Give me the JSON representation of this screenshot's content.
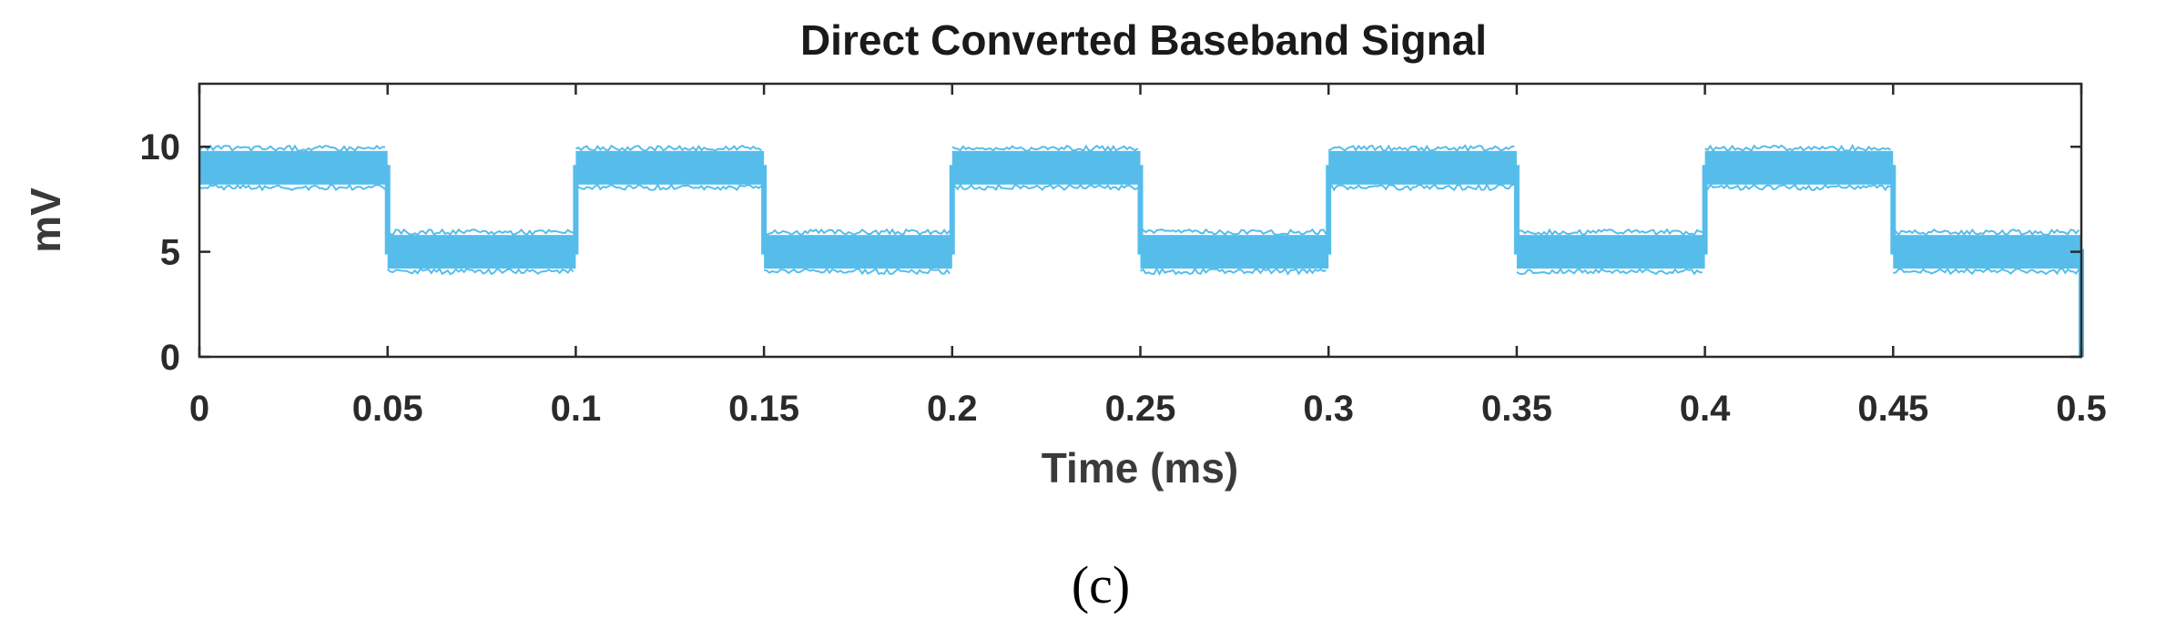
{
  "chart_data": {
    "type": "line",
    "title": "Direct Converted Baseband Signal",
    "xlabel": "Time (ms)",
    "ylabel": "mV",
    "xlim": [
      0,
      0.5
    ],
    "ylim": [
      0,
      13
    ],
    "x_ticks": [
      0,
      0.05,
      0.1,
      0.15,
      0.2,
      0.25,
      0.3,
      0.35,
      0.4,
      0.45,
      0.5
    ],
    "x_tick_labels": [
      "0",
      "0.05",
      "0.1",
      "0.15",
      "0.2",
      "0.25",
      "0.3",
      "0.35",
      "0.4",
      "0.45",
      "0.5"
    ],
    "y_ticks": [
      0,
      5,
      10
    ],
    "y_tick_labels": [
      "0",
      "5",
      "10"
    ],
    "grid": false,
    "line_color": "#56bdeb",
    "series": [
      {
        "signal": "square wave",
        "period_ms": 0.1,
        "high_level_mV": 9.0,
        "low_level_mV": 5.0,
        "noise_band_mV": 0.8,
        "x": [
          0,
          0.05,
          0.05,
          0.1,
          0.1,
          0.15,
          0.15,
          0.2,
          0.2,
          0.25,
          0.25,
          0.3,
          0.3,
          0.35,
          0.35,
          0.4,
          0.4,
          0.45,
          0.45,
          0.5,
          0.5
        ],
        "y": [
          9.0,
          9.0,
          5.0,
          5.0,
          9.0,
          9.0,
          5.0,
          5.0,
          9.0,
          9.0,
          5.0,
          5.0,
          9.0,
          9.0,
          5.0,
          5.0,
          9.0,
          9.0,
          5.0,
          5.0,
          0.0
        ]
      }
    ]
  },
  "panel_label": "(c)"
}
